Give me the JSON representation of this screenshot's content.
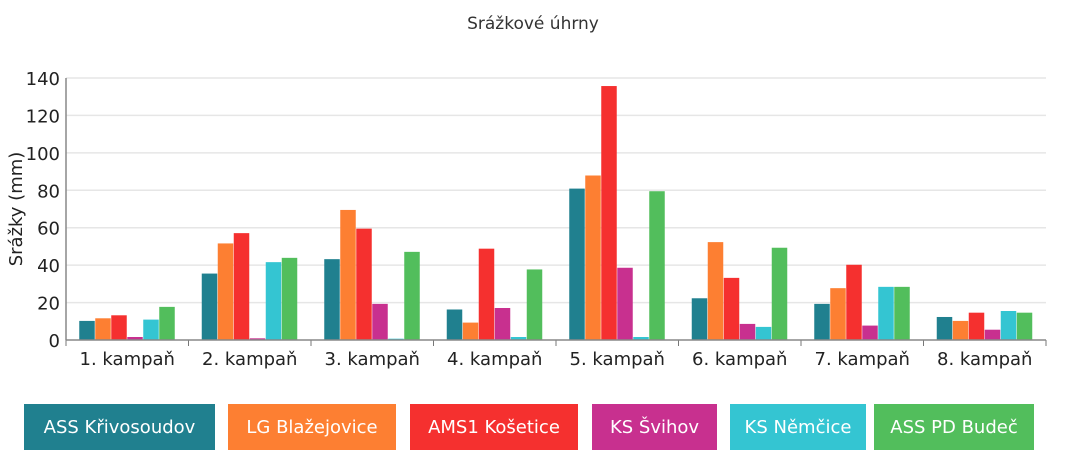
{
  "chart_data": {
    "type": "bar",
    "title": "Srážkové úhrny",
    "xlabel": "",
    "ylabel": "Srážky (mm)",
    "ylim": [
      0,
      140
    ],
    "yticks": [
      0,
      20,
      40,
      60,
      80,
      100,
      120,
      140
    ],
    "grid": true,
    "legend_position": "bottom",
    "categories": [
      "1. kampaň",
      "2. kampaň",
      "3. kampaň",
      "4. kampaň",
      "5. kampaň",
      "6. kampaň",
      "7. kampaň",
      "8. kampaň"
    ],
    "series": [
      {
        "name": "ASS Křivosoudov",
        "color": "#20808f",
        "values": [
          10.2,
          35.5,
          43.2,
          16.3,
          80.9,
          22.3,
          19.3,
          12.3
        ]
      },
      {
        "name": "LG Blažejovice",
        "color": "#fd7f32",
        "values": [
          11.6,
          51.6,
          69.5,
          9.3,
          87.9,
          52.3,
          27.7,
          10.2
        ]
      },
      {
        "name": "AMS1 Košetice",
        "color": "#f5302f",
        "values": [
          13.2,
          57.1,
          59.5,
          48.8,
          135.7,
          33.2,
          40.2,
          14.6
        ]
      },
      {
        "name": "KS Švihov",
        "color": "#c8308f",
        "values": [
          1.6,
          0.9,
          19.3,
          17.1,
          38.6,
          8.6,
          7.7,
          5.5
        ]
      },
      {
        "name": "KS Němčice",
        "color": "#34c5d2",
        "values": [
          10.9,
          41.6,
          0.7,
          1.6,
          1.6,
          7.0,
          28.4,
          15.5
        ]
      },
      {
        "name": "ASS PD Budeč",
        "color": "#52be5c",
        "values": [
          17.7,
          43.9,
          47.1,
          37.7,
          79.5,
          49.3,
          28.4,
          14.6
        ]
      }
    ]
  }
}
